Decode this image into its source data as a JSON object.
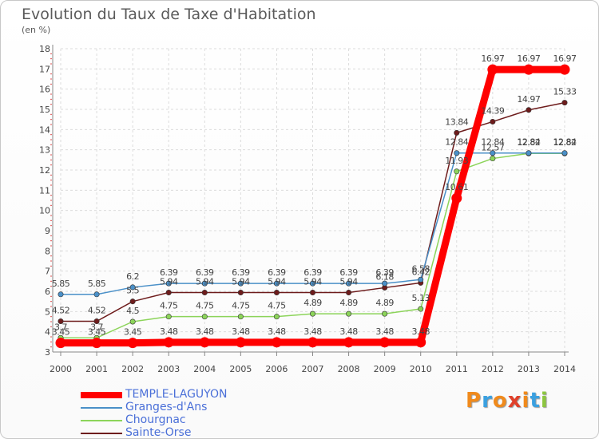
{
  "title": "Evolution du Taux de Taxe d'Habitation",
  "unit": "(en %)",
  "logo": {
    "text": "Proxiti",
    "colors": [
      "#f08a1c",
      "#3aa0e0",
      "#f08a1c",
      "#e0402a",
      "#f08a1c",
      "#3aa0e0",
      "#8cc63f"
    ]
  },
  "chart_data": {
    "type": "line",
    "title": "Evolution du Taux de Taxe d'Habitation",
    "ylabel": "(en %)",
    "ylim": [
      3,
      18
    ],
    "yticks": [
      "3",
      "4",
      "5",
      "6",
      "7",
      "8",
      "9",
      "10",
      "11",
      "12",
      "13",
      "14",
      "15",
      "16",
      "17",
      "18"
    ],
    "grid": true,
    "legend_position": "bottom-left",
    "x": [
      "2000",
      "2001",
      "2002",
      "2003",
      "2004",
      "2005",
      "2006",
      "2007",
      "2008",
      "2009",
      "2010",
      "2011",
      "2012",
      "2013",
      "2014"
    ],
    "series": [
      {
        "name": "TEMPLE-LAGUYON",
        "color": "#ff0000",
        "values": [
          3.45,
          3.45,
          3.45,
          3.48,
          3.48,
          3.48,
          3.48,
          3.48,
          3.48,
          3.48,
          3.48,
          10.61,
          16.97,
          16.97,
          16.97
        ],
        "labels": [
          "3.45",
          "3.45",
          "3.45",
          "3.48",
          "3.48",
          "3.48",
          "3.48",
          "3.48",
          "3.48",
          "3.48",
          "3.48",
          "10.61",
          "16.97",
          "16.97",
          "16.97"
        ]
      },
      {
        "name": "Granges-d'Ans",
        "color": "#4a90c8",
        "values": [
          5.85,
          5.85,
          6.2,
          6.39,
          6.39,
          6.39,
          6.39,
          6.39,
          6.39,
          6.39,
          6.58,
          12.84,
          12.84,
          12.84,
          12.84
        ],
        "labels": [
          "5.85",
          "5.85",
          "6.2",
          "6.39",
          "6.39",
          "6.39",
          "6.39",
          "6.39",
          "6.39",
          "6.39",
          "6.58",
          "12.84",
          "12.84",
          "12.84",
          "12.84"
        ]
      },
      {
        "name": "Chourgnac",
        "color": "#8cd45a",
        "values": [
          3.7,
          3.7,
          4.5,
          4.75,
          4.75,
          4.75,
          4.75,
          4.89,
          4.89,
          4.89,
          5.13,
          11.93,
          12.57,
          12.82,
          12.82
        ],
        "labels": [
          "3.7",
          "3.7",
          "4.5",
          "4.75",
          "4.75",
          "4.75",
          "4.75",
          "4.89",
          "4.89",
          "4.89",
          "5.13",
          "11.93",
          "12.57",
          "12.82",
          "12.82"
        ]
      },
      {
        "name": "Sainte-Orse",
        "color": "#6e1c1c",
        "values": [
          4.52,
          4.52,
          5.5,
          5.94,
          5.94,
          5.94,
          5.94,
          5.94,
          5.94,
          6.18,
          6.42,
          13.84,
          14.39,
          14.97,
          15.33
        ],
        "labels": [
          "4.52",
          "4.52",
          "5.5",
          "5.94",
          "5.94",
          "5.94",
          "5.94",
          "5.94",
          "5.94",
          "6.18",
          "6.42",
          "13.84",
          "14.39",
          "14.97",
          "15.33"
        ]
      }
    ]
  }
}
